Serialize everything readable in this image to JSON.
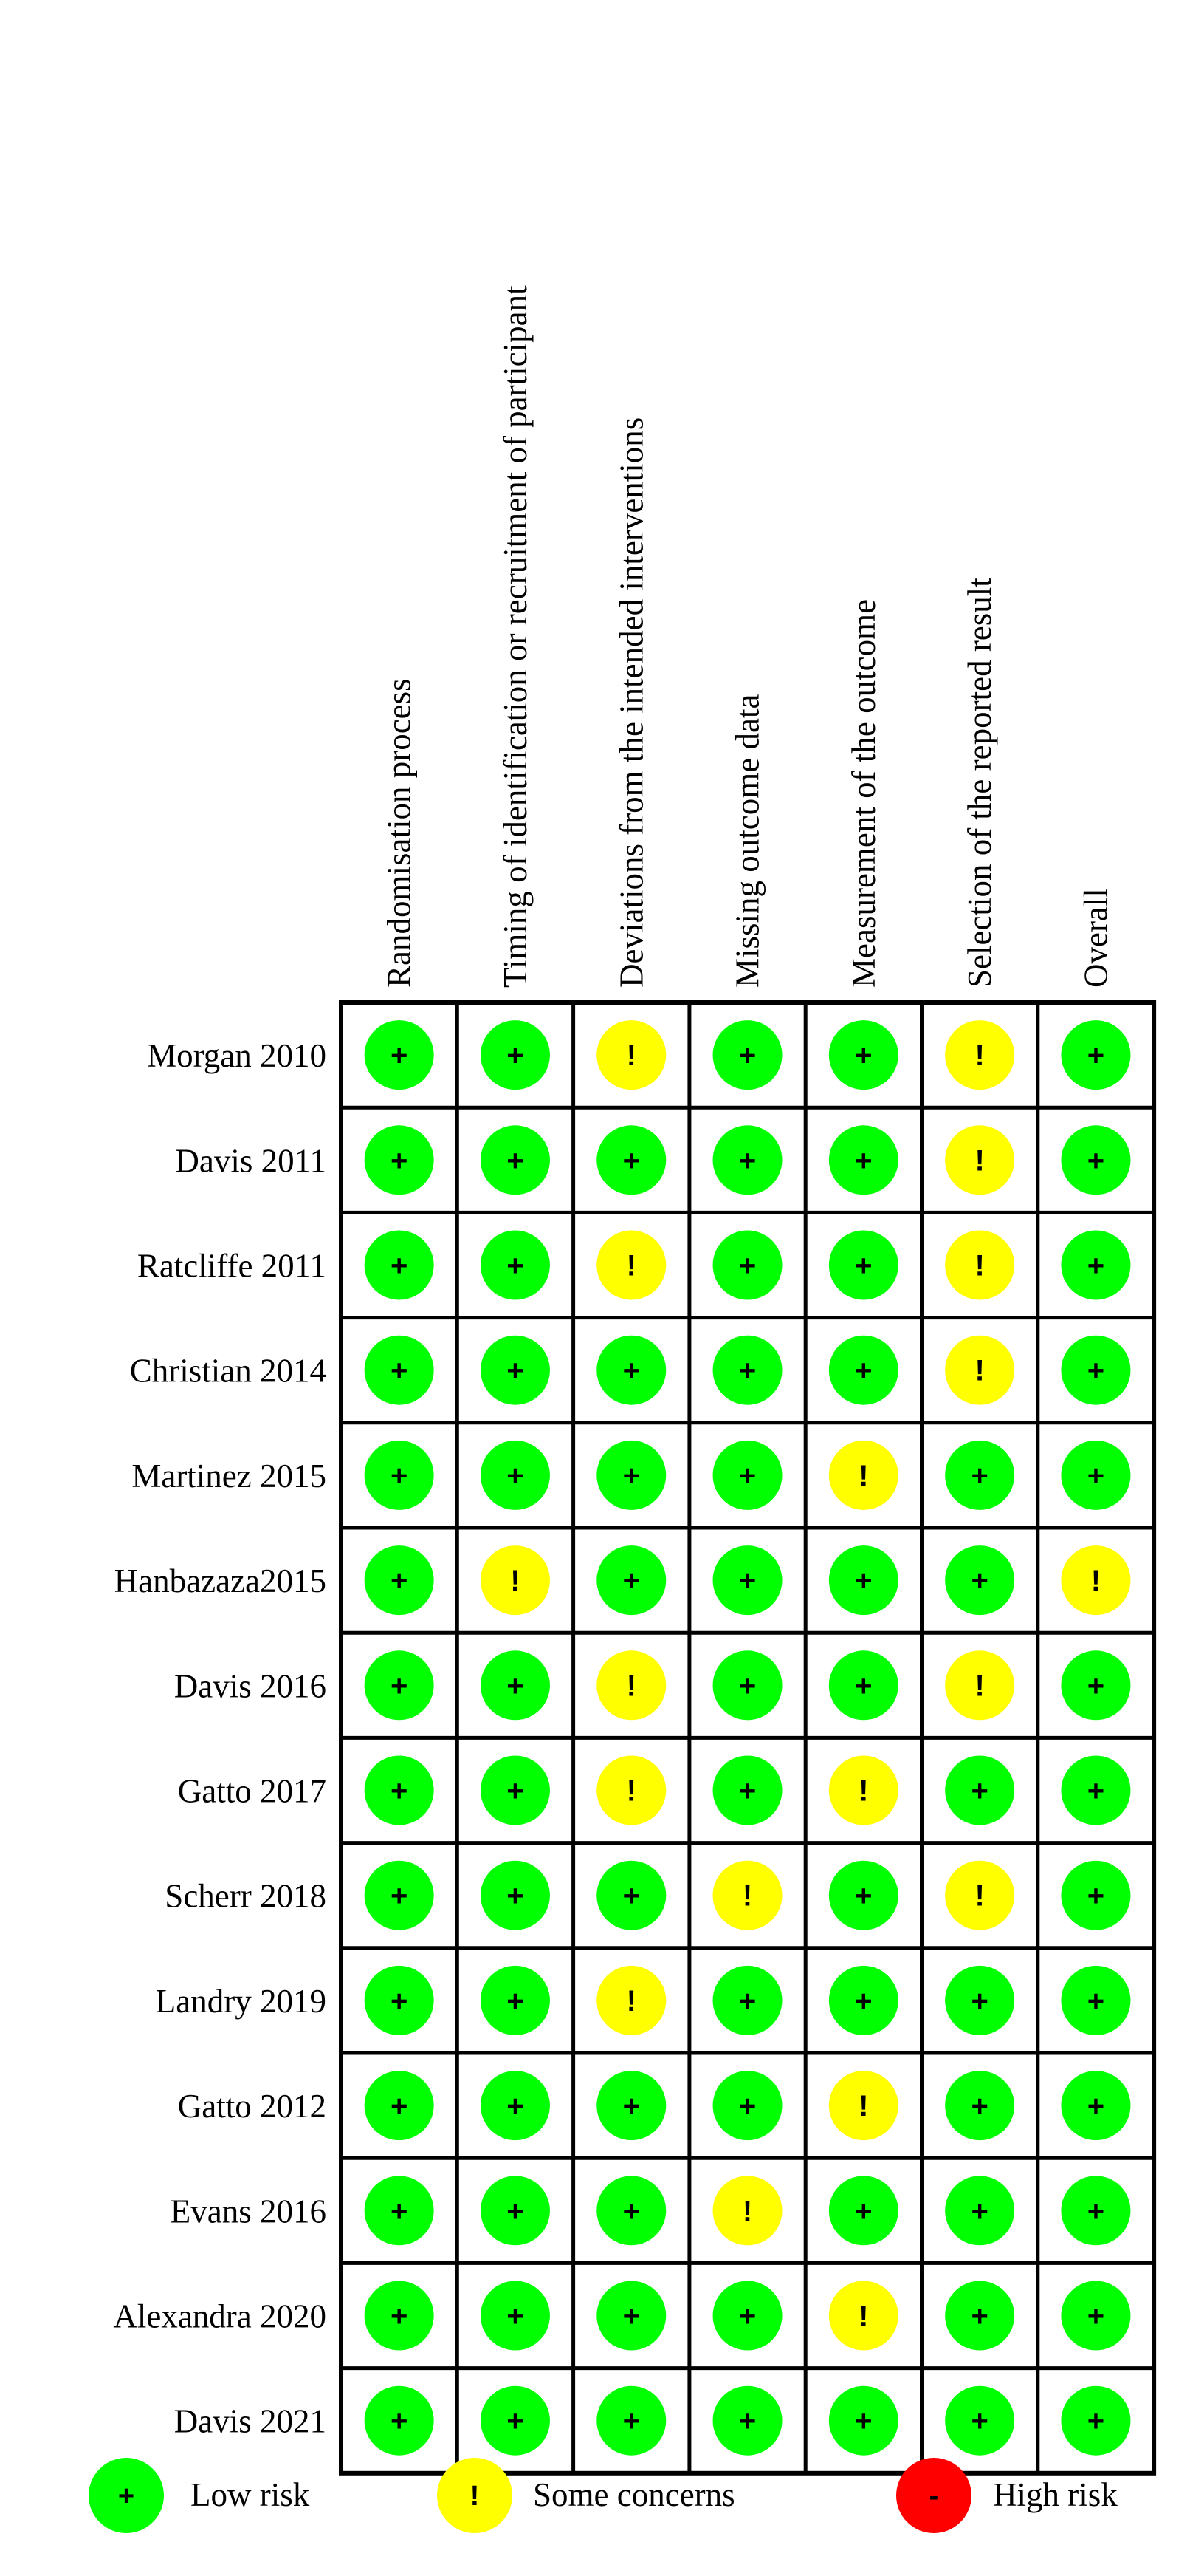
{
  "chart_data": {
    "type": "table",
    "columns": [
      "Randomisation process",
      "Timing of identification or recruitment of participant",
      "Deviations from the intended interventions",
      "Missing outcome data",
      "Measurement of the outcome",
      "Selection of the reported result",
      "Overall"
    ],
    "rows": [
      {
        "study": "Morgan 2010",
        "ratings": [
          "low",
          "low",
          "some",
          "low",
          "low",
          "some",
          "low"
        ]
      },
      {
        "study": "Davis 2011",
        "ratings": [
          "low",
          "low",
          "low",
          "low",
          "low",
          "some",
          "low"
        ]
      },
      {
        "study": "Ratcliffe 2011",
        "ratings": [
          "low",
          "low",
          "some",
          "low",
          "low",
          "some",
          "low"
        ]
      },
      {
        "study": "Christian 2014",
        "ratings": [
          "low",
          "low",
          "low",
          "low",
          "low",
          "some",
          "low"
        ]
      },
      {
        "study": "Martinez 2015",
        "ratings": [
          "low",
          "low",
          "low",
          "low",
          "some",
          "low",
          "low"
        ]
      },
      {
        "study": "Hanbazaza2015",
        "ratings": [
          "low",
          "some",
          "low",
          "low",
          "low",
          "low",
          "some"
        ]
      },
      {
        "study": "Davis 2016",
        "ratings": [
          "low",
          "low",
          "some",
          "low",
          "low",
          "some",
          "low"
        ]
      },
      {
        "study": "Gatto 2017",
        "ratings": [
          "low",
          "low",
          "some",
          "low",
          "some",
          "low",
          "low"
        ]
      },
      {
        "study": "Scherr 2018",
        "ratings": [
          "low",
          "low",
          "low",
          "some",
          "low",
          "some",
          "low"
        ]
      },
      {
        "study": "Landry 2019",
        "ratings": [
          "low",
          "low",
          "some",
          "low",
          "low",
          "low",
          "low"
        ]
      },
      {
        "study": "Gatto 2012",
        "ratings": [
          "low",
          "low",
          "low",
          "low",
          "some",
          "low",
          "low"
        ]
      },
      {
        "study": "Evans 2016",
        "ratings": [
          "low",
          "low",
          "low",
          "some",
          "low",
          "low",
          "low"
        ]
      },
      {
        "study": "Alexandra 2020",
        "ratings": [
          "low",
          "low",
          "low",
          "low",
          "some",
          "low",
          "low"
        ]
      },
      {
        "study": "Davis 2021",
        "ratings": [
          "low",
          "low",
          "low",
          "low",
          "low",
          "low",
          "low"
        ]
      }
    ],
    "levels": {
      "low": {
        "symbol": "+",
        "color": "#00ff00"
      },
      "some": {
        "symbol": "!",
        "color": "#ffff00"
      },
      "high": {
        "symbol": "-",
        "color": "#ff0000"
      }
    },
    "legend": [
      {
        "level": "low",
        "label": "Low risk"
      },
      {
        "level": "some",
        "label": "Some concerns"
      },
      {
        "level": "high",
        "label": "High risk"
      }
    ]
  }
}
